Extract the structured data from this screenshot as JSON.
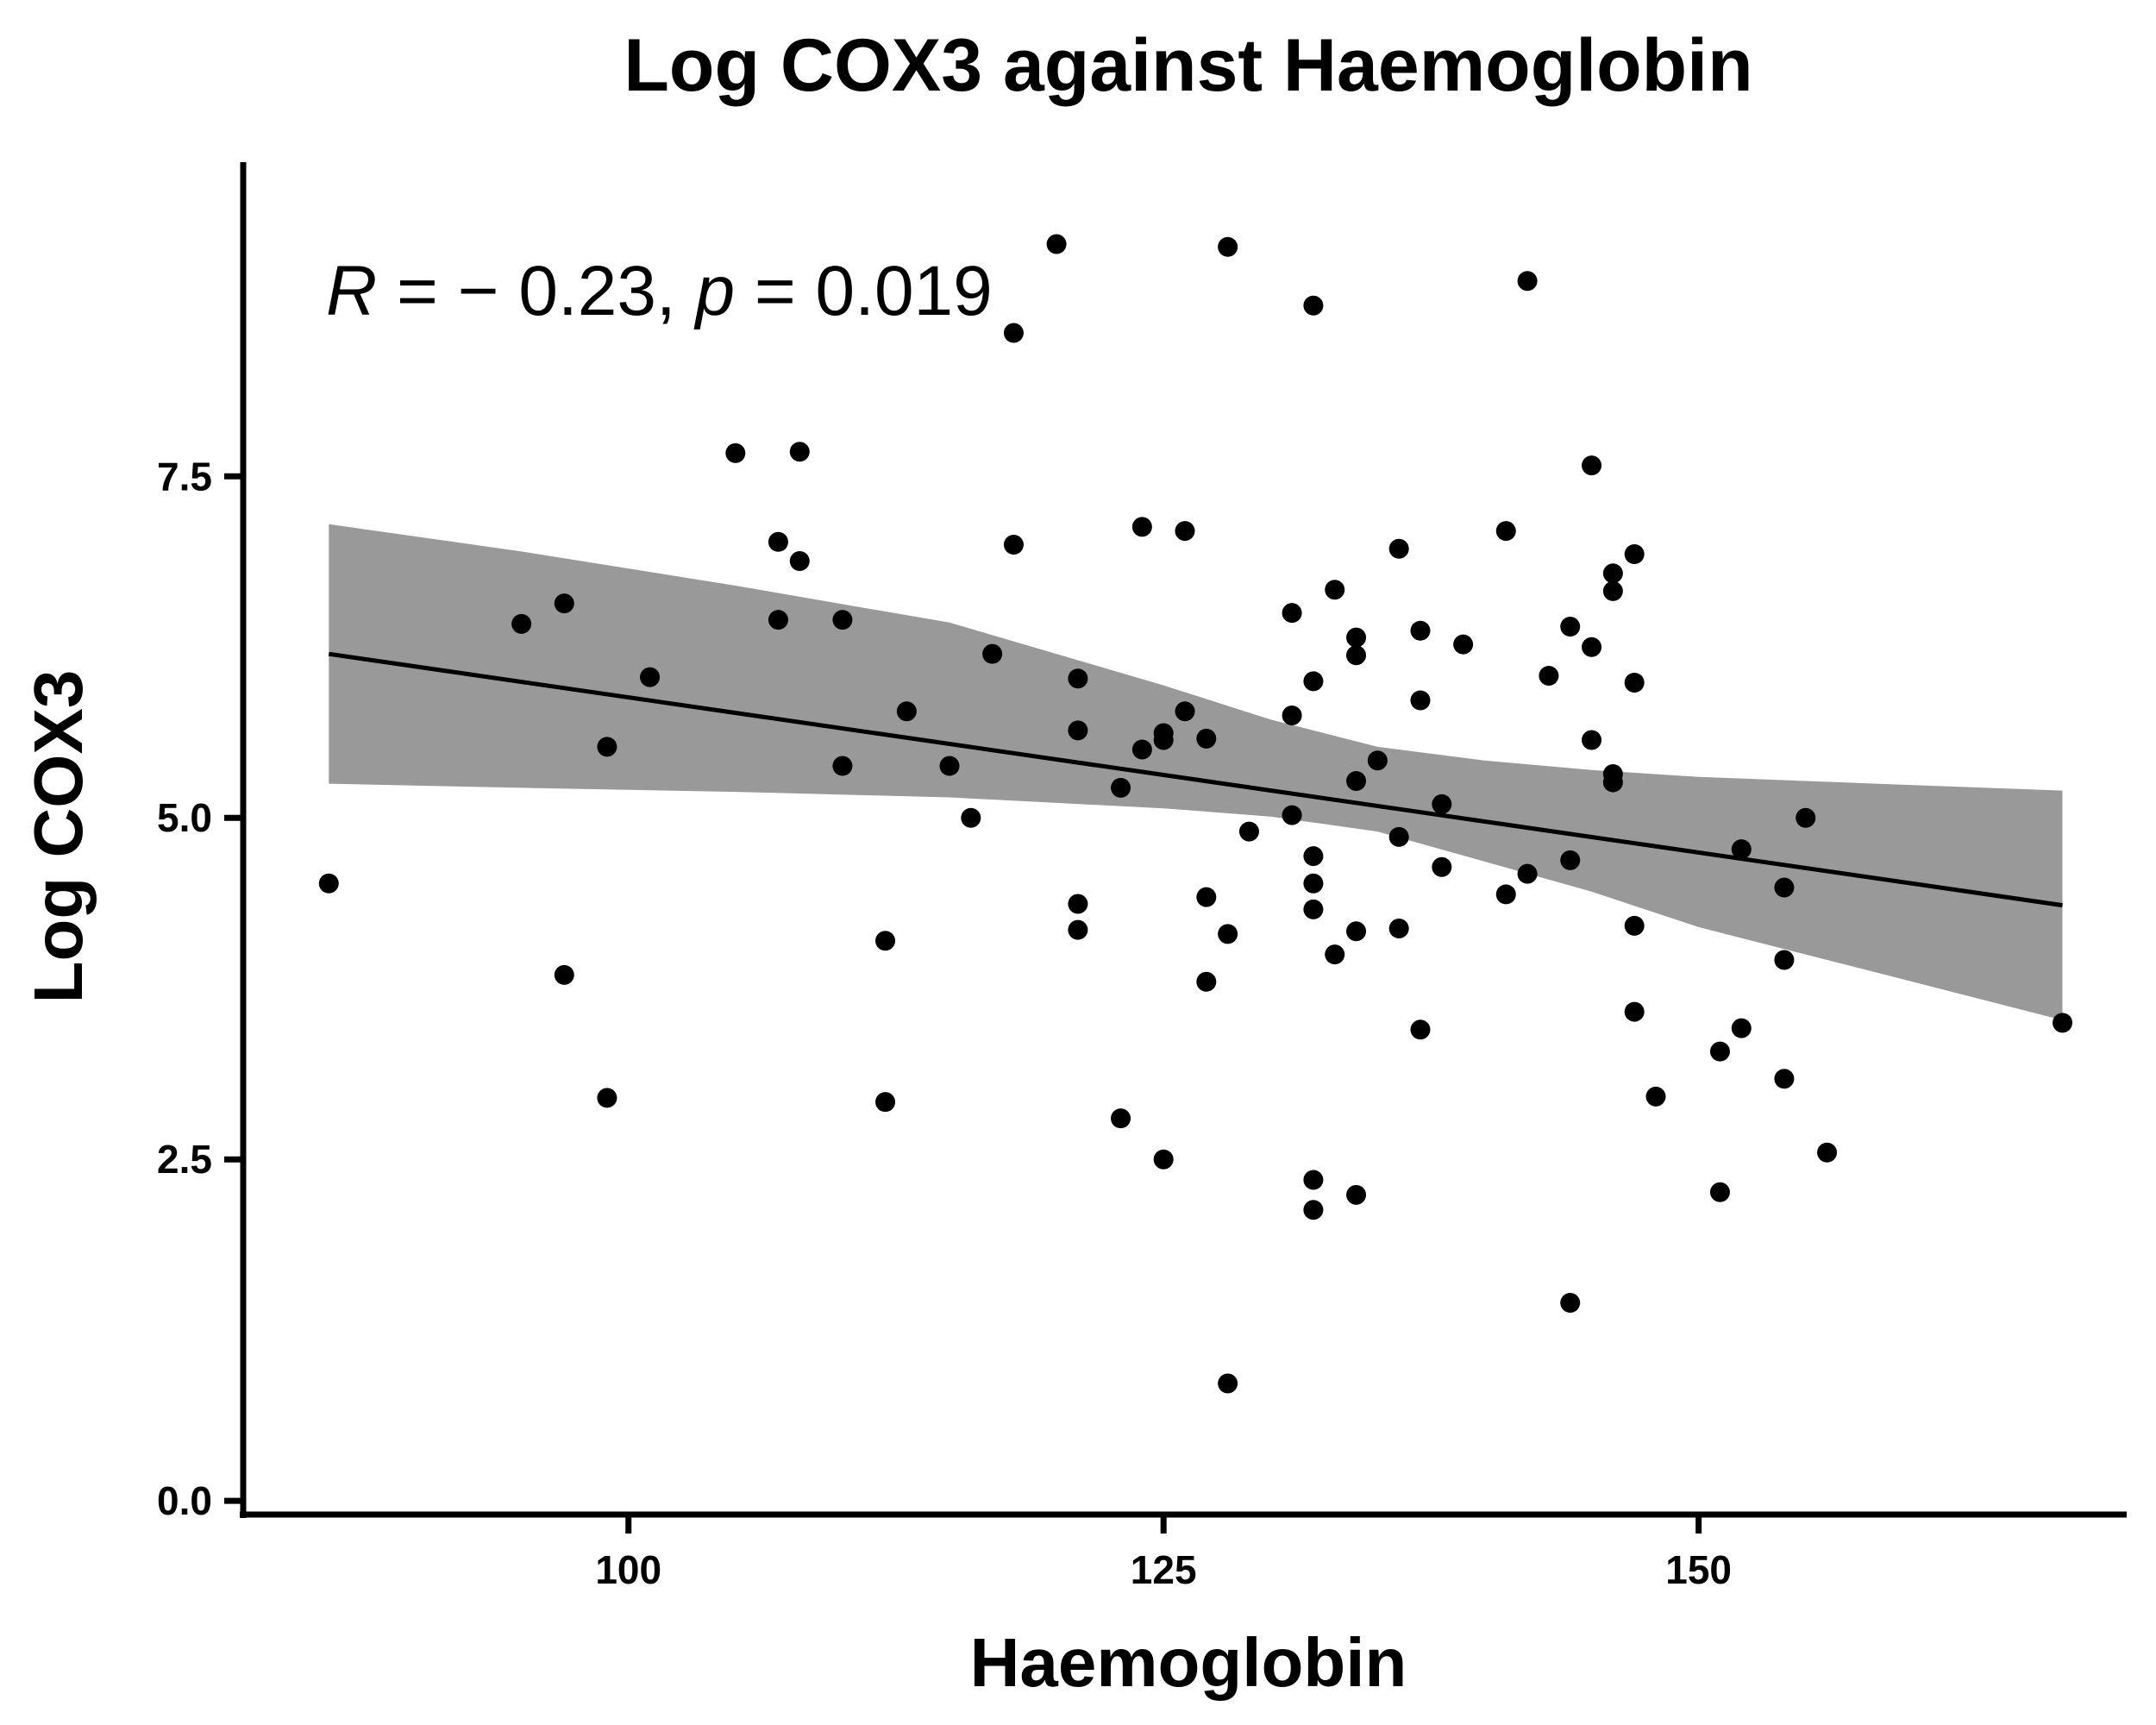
{
  "chart_data": {
    "type": "scatter",
    "title": "Log COX3 against Haemoglobin",
    "xlabel": "Haemoglobin",
    "ylabel": "Log COX3",
    "xlim": [
      82,
      170
    ],
    "ylim": [
      -0.1,
      9.8
    ],
    "xticks": [
      100,
      125,
      150
    ],
    "xtick_labels": [
      "100",
      "125",
      "150"
    ],
    "yticks": [
      0.0,
      2.5,
      5.0,
      7.5
    ],
    "ytick_labels": [
      "0.0",
      "2.5",
      "5.0",
      "7.5"
    ],
    "grid": false,
    "legend": "none",
    "annotation": {
      "r_symbol": "R",
      "r_text": " = − 0.23, ",
      "p_symbol": "p",
      "p_text": " = 0.019"
    },
    "colors": {
      "points": "#000000",
      "fit_line": "#000000",
      "confidence_band": "#999999"
    },
    "fit": {
      "x": [
        86,
        167
      ],
      "y": [
        6.2,
        4.36
      ]
    },
    "confidence_band": {
      "x": [
        86,
        95,
        105,
        115,
        125,
        130,
        135,
        140,
        145,
        150,
        155,
        160,
        167
      ],
      "upper": [
        7.15,
        6.95,
        6.7,
        6.43,
        5.97,
        5.72,
        5.52,
        5.42,
        5.35,
        5.3,
        5.27,
        5.24,
        5.2
      ],
      "lower": [
        5.25,
        5.22,
        5.19,
        5.15,
        5.07,
        5.01,
        4.9,
        4.68,
        4.46,
        4.2,
        4.0,
        3.8,
        3.52
      ]
    },
    "points": [
      {
        "x": 86,
        "y": 4.52
      },
      {
        "x": 95,
        "y": 6.42
      },
      {
        "x": 97,
        "y": 6.57
      },
      {
        "x": 97,
        "y": 3.85
      },
      {
        "x": 99,
        "y": 5.52
      },
      {
        "x": 99,
        "y": 2.95
      },
      {
        "x": 101,
        "y": 6.03
      },
      {
        "x": 105,
        "y": 7.67
      },
      {
        "x": 107,
        "y": 7.02
      },
      {
        "x": 107,
        "y": 6.45
      },
      {
        "x": 108,
        "y": 7.68
      },
      {
        "x": 108,
        "y": 6.88
      },
      {
        "x": 110,
        "y": 6.45
      },
      {
        "x": 110,
        "y": 5.38
      },
      {
        "x": 112,
        "y": 4.1
      },
      {
        "x": 112,
        "y": 2.92
      },
      {
        "x": 113,
        "y": 5.78
      },
      {
        "x": 115,
        "y": 5.38
      },
      {
        "x": 116,
        "y": 5.0
      },
      {
        "x": 117,
        "y": 6.2
      },
      {
        "x": 118,
        "y": 8.55
      },
      {
        "x": 118,
        "y": 7.0
      },
      {
        "x": 120,
        "y": 9.2
      },
      {
        "x": 121,
        "y": 6.02
      },
      {
        "x": 121,
        "y": 5.64
      },
      {
        "x": 121,
        "y": 4.37
      },
      {
        "x": 121,
        "y": 4.18
      },
      {
        "x": 123,
        "y": 5.22
      },
      {
        "x": 123,
        "y": 2.8
      },
      {
        "x": 124,
        "y": 7.13
      },
      {
        "x": 124,
        "y": 5.5
      },
      {
        "x": 125,
        "y": 5.62
      },
      {
        "x": 125,
        "y": 5.57
      },
      {
        "x": 125,
        "y": 2.5
      },
      {
        "x": 126,
        "y": 7.1
      },
      {
        "x": 126,
        "y": 5.78
      },
      {
        "x": 127,
        "y": 5.58
      },
      {
        "x": 127,
        "y": 4.42
      },
      {
        "x": 127,
        "y": 3.8
      },
      {
        "x": 128,
        "y": 9.18
      },
      {
        "x": 128,
        "y": 4.15
      },
      {
        "x": 128,
        "y": 0.86
      },
      {
        "x": 129,
        "y": 4.9
      },
      {
        "x": 131,
        "y": 6.5
      },
      {
        "x": 131,
        "y": 5.75
      },
      {
        "x": 131,
        "y": 5.02
      },
      {
        "x": 132,
        "y": 8.75
      },
      {
        "x": 132,
        "y": 6.0
      },
      {
        "x": 132,
        "y": 4.72
      },
      {
        "x": 132,
        "y": 4.52
      },
      {
        "x": 132,
        "y": 4.33
      },
      {
        "x": 132,
        "y": 2.35
      },
      {
        "x": 132,
        "y": 2.13
      },
      {
        "x": 133,
        "y": 6.67
      },
      {
        "x": 133,
        "y": 4.0
      },
      {
        "x": 134,
        "y": 6.32
      },
      {
        "x": 134,
        "y": 6.19
      },
      {
        "x": 134,
        "y": 5.27
      },
      {
        "x": 134,
        "y": 4.17
      },
      {
        "x": 134,
        "y": 2.24
      },
      {
        "x": 135,
        "y": 5.42
      },
      {
        "x": 136,
        "y": 6.97
      },
      {
        "x": 136,
        "y": 4.86
      },
      {
        "x": 136,
        "y": 4.19
      },
      {
        "x": 137,
        "y": 6.37
      },
      {
        "x": 137,
        "y": 5.86
      },
      {
        "x": 137,
        "y": 3.45
      },
      {
        "x": 138,
        "y": 5.1
      },
      {
        "x": 138,
        "y": 4.64
      },
      {
        "x": 139,
        "y": 6.27
      },
      {
        "x": 141,
        "y": 7.1
      },
      {
        "x": 141,
        "y": 4.44
      },
      {
        "x": 142,
        "y": 8.93
      },
      {
        "x": 142,
        "y": 4.59
      },
      {
        "x": 143,
        "y": 6.04
      },
      {
        "x": 144,
        "y": 6.4
      },
      {
        "x": 144,
        "y": 4.69
      },
      {
        "x": 144,
        "y": 1.45
      },
      {
        "x": 145,
        "y": 7.58
      },
      {
        "x": 145,
        "y": 6.25
      },
      {
        "x": 145,
        "y": 5.57
      },
      {
        "x": 146,
        "y": 6.79
      },
      {
        "x": 146,
        "y": 6.66
      },
      {
        "x": 146,
        "y": 5.32
      },
      {
        "x": 146,
        "y": 5.26
      },
      {
        "x": 147,
        "y": 6.93
      },
      {
        "x": 147,
        "y": 5.99
      },
      {
        "x": 147,
        "y": 4.21
      },
      {
        "x": 147,
        "y": 3.58
      },
      {
        "x": 148,
        "y": 2.96
      },
      {
        "x": 151,
        "y": 3.29
      },
      {
        "x": 151,
        "y": 2.26
      },
      {
        "x": 152,
        "y": 4.77
      },
      {
        "x": 152,
        "y": 3.46
      },
      {
        "x": 154,
        "y": 4.49
      },
      {
        "x": 154,
        "y": 3.96
      },
      {
        "x": 154,
        "y": 3.09
      },
      {
        "x": 155,
        "y": 5.0
      },
      {
        "x": 156,
        "y": 2.55
      },
      {
        "x": 167,
        "y": 3.5
      }
    ]
  }
}
